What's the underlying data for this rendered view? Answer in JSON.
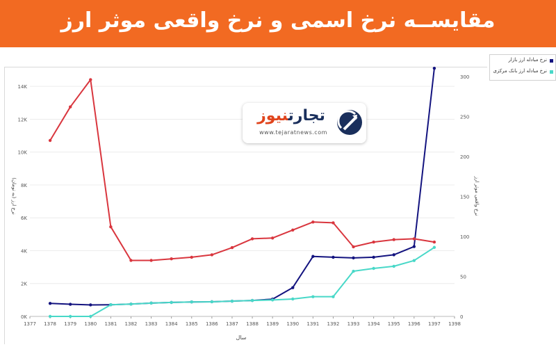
{
  "header": {
    "title": "مقایســه نرخ اسمی و نرخ واقعی موثر ارز"
  },
  "logo": {
    "name_part1": "تجارت",
    "name_part2": "نیوز",
    "url": "www.tejaratnews.com"
  },
  "colors": {
    "header_bg": "#f26a22",
    "market_series": "#13137f",
    "central_series": "#48d8c8",
    "real_rate_series": "#d9363e"
  },
  "chart_data": {
    "type": "line",
    "xlabel": "سال",
    "ylabel_left": "نرخ ارز (به تومان)",
    "ylabel_right": "نرخ واقعی موثر ارز",
    "x_ticks": [
      "1377",
      "1378",
      "1379",
      "1380",
      "1381",
      "1382",
      "1383",
      "1384",
      "1385",
      "1386",
      "1387",
      "1388",
      "1389",
      "1390",
      "1391",
      "1392",
      "1393",
      "1394",
      "1395",
      "1396",
      "1397",
      "1398"
    ],
    "xlim": [
      1377,
      1398
    ],
    "y_left_ticks": [
      "0K",
      "2K",
      "4K",
      "6K",
      "8K",
      "10K",
      "12K",
      "14K"
    ],
    "ylim_left": [
      0,
      14600
    ],
    "y_right_ticks": [
      "0",
      "50",
      "100",
      "150",
      "200",
      "250",
      "300"
    ],
    "ylim_right": [
      0,
      300
    ],
    "legend": {
      "position": "top-right",
      "entries": [
        "نرخ مبادله ارز بازار",
        "نرخ مبادله ارز بانک مرکزی"
      ]
    },
    "series": [
      {
        "name": "نرخ مبادله ارز بازار",
        "axis": "left",
        "color": "#13137f",
        "x": [
          1378,
          1379,
          1380,
          1381,
          1382,
          1383,
          1384,
          1385,
          1386,
          1387,
          1388,
          1389,
          1390,
          1391,
          1392,
          1393,
          1394,
          1395,
          1396,
          1397
        ],
        "values": [
          790,
          740,
          700,
          710,
          750,
          810,
          850,
          880,
          890,
          930,
          970,
          1050,
          1750,
          3650,
          3600,
          3560,
          3600,
          3750,
          4250,
          15100
        ]
      },
      {
        "name": "نرخ مبادله ارز بانک مرکزی",
        "axis": "left",
        "color": "#48d8c8",
        "x": [
          1378,
          1379,
          1380,
          1381,
          1382,
          1383,
          1384,
          1385,
          1386,
          1387,
          1388,
          1389,
          1390,
          1391,
          1392,
          1393,
          1394,
          1395,
          1396,
          1397
        ],
        "values": [
          0,
          0,
          0,
          710,
          750,
          810,
          850,
          880,
          890,
          930,
          970,
          1000,
          1060,
          1200,
          1200,
          2750,
          2920,
          3050,
          3400,
          4200
        ]
      },
      {
        "axis": "right",
        "color": "#d9363e",
        "x": [
          1378,
          1379,
          1380,
          1381,
          1382,
          1383,
          1384,
          1385,
          1386,
          1387,
          1388,
          1389,
          1390,
          1391,
          1392,
          1393,
          1394,
          1395,
          1396,
          1397
        ],
        "values": [
          220,
          262,
          296,
          112,
          70,
          70,
          72,
          74,
          77,
          86,
          97,
          98,
          108,
          118,
          117,
          87,
          93,
          96,
          97,
          93
        ]
      }
    ]
  }
}
